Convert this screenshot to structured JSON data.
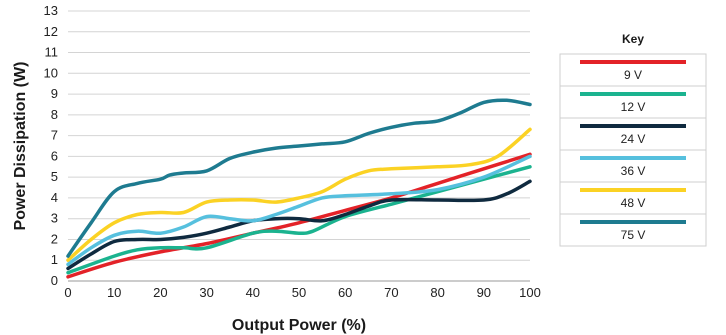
{
  "chart_data": {
    "type": "line",
    "xlabel": "Output Power (%)",
    "ylabel": "Power Dissipation (W)",
    "xlim": [
      0,
      100
    ],
    "ylim": [
      0,
      13
    ],
    "x_ticks": [
      "0",
      "10",
      "20",
      "30",
      "40",
      "50",
      "60",
      "70",
      "80",
      "90",
      "100"
    ],
    "y_ticks": [
      "0",
      "1",
      "2",
      "3",
      "4",
      "5",
      "6",
      "7",
      "8",
      "9",
      "10",
      "11",
      "12",
      "13"
    ],
    "grid": "horizontal",
    "legend": {
      "title": "Key",
      "position": "right"
    },
    "series": [
      {
        "name": "9 V",
        "color": "#e32228",
        "points": [
          [
            0,
            0.2
          ],
          [
            10,
            0.9
          ],
          [
            20,
            1.4
          ],
          [
            30,
            1.8
          ],
          [
            40,
            2.3
          ],
          [
            50,
            2.8
          ],
          [
            60,
            3.4
          ],
          [
            70,
            4.0
          ],
          [
            80,
            4.7
          ],
          [
            90,
            5.4
          ],
          [
            100,
            6.1
          ]
        ]
      },
      {
        "name": "12 V",
        "color": "#1bb38f",
        "points": [
          [
            0,
            0.4
          ],
          [
            10,
            1.2
          ],
          [
            15,
            1.5
          ],
          [
            20,
            1.6
          ],
          [
            25,
            1.6
          ],
          [
            30,
            1.6
          ],
          [
            40,
            2.3
          ],
          [
            45,
            2.4
          ],
          [
            50,
            2.3
          ],
          [
            53,
            2.4
          ],
          [
            60,
            3.1
          ],
          [
            70,
            3.7
          ],
          [
            80,
            4.3
          ],
          [
            90,
            4.9
          ],
          [
            100,
            5.5
          ]
        ]
      },
      {
        "name": "24 V",
        "color": "#0f2a3f",
        "points": [
          [
            0,
            0.6
          ],
          [
            5,
            1.3
          ],
          [
            10,
            1.9
          ],
          [
            15,
            2.0
          ],
          [
            20,
            2.0
          ],
          [
            25,
            2.1
          ],
          [
            30,
            2.3
          ],
          [
            35,
            2.6
          ],
          [
            40,
            2.9
          ],
          [
            45,
            3.0
          ],
          [
            50,
            3.0
          ],
          [
            55,
            2.9
          ],
          [
            60,
            3.2
          ],
          [
            65,
            3.6
          ],
          [
            70,
            3.9
          ],
          [
            80,
            3.9
          ],
          [
            90,
            3.9
          ],
          [
            95,
            4.2
          ],
          [
            100,
            4.8
          ]
        ]
      },
      {
        "name": "36 V",
        "color": "#56c0de",
        "points": [
          [
            0,
            0.8
          ],
          [
            5,
            1.6
          ],
          [
            10,
            2.2
          ],
          [
            15,
            2.4
          ],
          [
            20,
            2.3
          ],
          [
            25,
            2.6
          ],
          [
            30,
            3.1
          ],
          [
            35,
            3.0
          ],
          [
            40,
            2.9
          ],
          [
            45,
            3.2
          ],
          [
            50,
            3.6
          ],
          [
            55,
            4.0
          ],
          [
            60,
            4.1
          ],
          [
            70,
            4.2
          ],
          [
            80,
            4.4
          ],
          [
            90,
            5.0
          ],
          [
            100,
            6.0
          ]
        ]
      },
      {
        "name": "48 V",
        "color": "#fbd224",
        "points": [
          [
            0,
            1.0
          ],
          [
            5,
            2.0
          ],
          [
            10,
            2.8
          ],
          [
            15,
            3.2
          ],
          [
            20,
            3.3
          ],
          [
            25,
            3.3
          ],
          [
            30,
            3.8
          ],
          [
            35,
            3.9
          ],
          [
            40,
            3.9
          ],
          [
            45,
            3.8
          ],
          [
            50,
            4.0
          ],
          [
            55,
            4.3
          ],
          [
            60,
            4.9
          ],
          [
            65,
            5.3
          ],
          [
            70,
            5.4
          ],
          [
            80,
            5.5
          ],
          [
            87,
            5.6
          ],
          [
            93,
            6.0
          ],
          [
            100,
            7.3
          ]
        ]
      },
      {
        "name": "75 V",
        "color": "#1e7b90",
        "points": [
          [
            0,
            1.2
          ],
          [
            5,
            2.8
          ],
          [
            10,
            4.3
          ],
          [
            15,
            4.7
          ],
          [
            20,
            4.9
          ],
          [
            22,
            5.1
          ],
          [
            25,
            5.2
          ],
          [
            30,
            5.3
          ],
          [
            35,
            5.9
          ],
          [
            40,
            6.2
          ],
          [
            45,
            6.4
          ],
          [
            50,
            6.5
          ],
          [
            55,
            6.6
          ],
          [
            60,
            6.7
          ],
          [
            65,
            7.1
          ],
          [
            70,
            7.4
          ],
          [
            75,
            7.6
          ],
          [
            80,
            7.7
          ],
          [
            85,
            8.1
          ],
          [
            90,
            8.6
          ],
          [
            95,
            8.7
          ],
          [
            100,
            8.5
          ]
        ]
      }
    ]
  }
}
